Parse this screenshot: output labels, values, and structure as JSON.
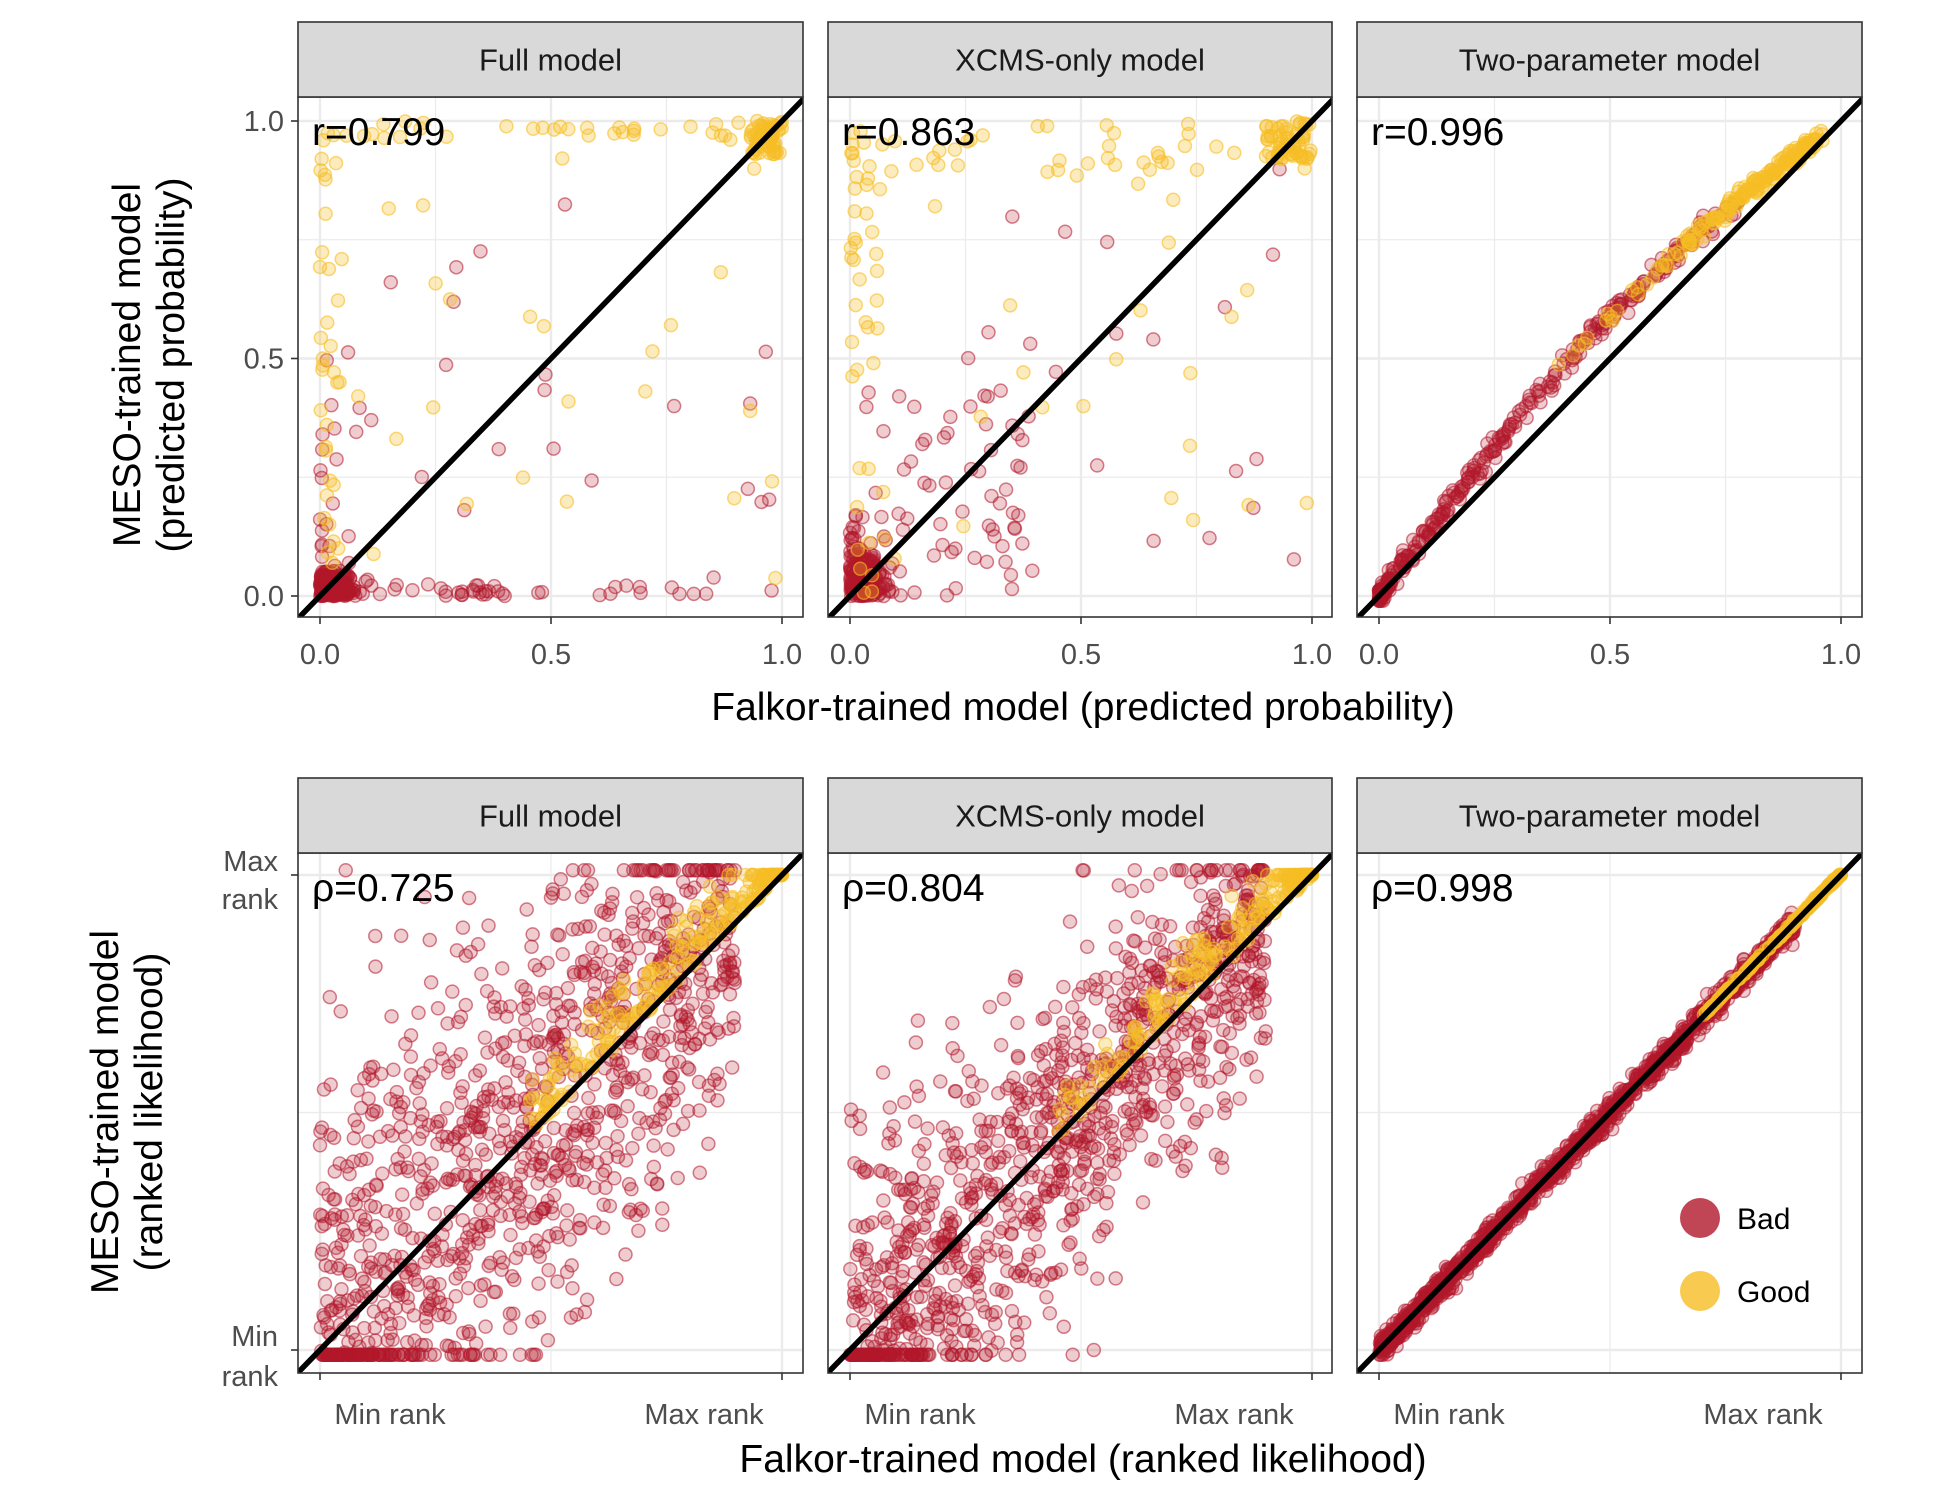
{
  "colors": {
    "bad": "#B2182B",
    "good": "#F6BE24",
    "identity_line": "#000000",
    "strip_fill": "#D9D9D9",
    "grid": "#EBEBEB"
  },
  "legend": {
    "items": [
      {
        "label": "Bad",
        "color": "#B2182B"
      },
      {
        "label": "Good",
        "color": "#F6BE24"
      }
    ],
    "placement": "bottom-right of lower-right panel"
  },
  "top_row": {
    "xlabel": "Falkor-trained model (predicted probability)",
    "ylabel_line1": "MESO-trained model",
    "ylabel_line2": "(predicted probability)",
    "x_ticks": [
      "0.0",
      "0.5",
      "1.0"
    ],
    "y_ticks": [
      "0.0",
      "0.5",
      "1.0"
    ]
  },
  "bottom_row": {
    "xlabel": "Falkor-trained model (ranked likelihood)",
    "ylabel_line1": "MESO-trained model",
    "ylabel_line2": "(ranked likelihood)",
    "x_ticks": [
      "Min rank",
      "Max rank"
    ],
    "y_ticks_min": [
      "Min",
      "rank"
    ],
    "y_ticks_max": [
      "Max",
      "rank"
    ]
  },
  "chart_data": [
    {
      "type": "scatter",
      "panel": "Full model",
      "measure": "predicted probability",
      "annotation": "r=0.799",
      "correlation": 0.799,
      "xlim": [
        0,
        1
      ],
      "ylim": [
        0,
        1
      ],
      "reference_line": "y = x",
      "series": [
        {
          "name": "Bad",
          "pattern": "mostly near (0,0); spread along y≈0 to x≈0.8 and along x≈0 to y≈0.5"
        },
        {
          "name": "Good",
          "pattern": "clustered near (1,1); scattered along y≈1 and x≈0"
        }
      ]
    },
    {
      "type": "scatter",
      "panel": "XCMS-only model",
      "measure": "predicted probability",
      "annotation": "r=0.863",
      "correlation": 0.863,
      "xlim": [
        0,
        1
      ],
      "ylim": [
        0,
        1
      ],
      "reference_line": "y = x",
      "series": [
        {
          "name": "Bad",
          "pattern": "dense near (0,0); scattered up to y≈0.85"
        },
        {
          "name": "Good",
          "pattern": "clustered near (1,1); scattered along top edge"
        }
      ]
    },
    {
      "type": "scatter",
      "panel": "Two-parameter model",
      "measure": "predicted probability",
      "annotation": "r=0.996",
      "correlation": 0.996,
      "xlim": [
        0,
        1
      ],
      "ylim": [
        0,
        1
      ],
      "reference_line": "y = x",
      "series": [
        {
          "name": "Bad",
          "pattern": "tight concave curve slightly above diagonal, x 0–0.75"
        },
        {
          "name": "Good",
          "pattern": "along same curve, concentrated near (0.95,0.98)"
        }
      ]
    },
    {
      "type": "scatter",
      "panel": "Full model",
      "measure": "ranked likelihood",
      "annotation": "ρ=0.725",
      "correlation": 0.725,
      "xlim": [
        "Min rank",
        "Max rank"
      ],
      "ylim": [
        "Min rank",
        "Max rank"
      ],
      "reference_line": "y = x",
      "series": [
        {
          "name": "Bad",
          "pattern": "broad cloud around diagonal"
        },
        {
          "name": "Good",
          "pattern": "upper-right corner near max rank"
        }
      ]
    },
    {
      "type": "scatter",
      "panel": "XCMS-only model",
      "measure": "ranked likelihood",
      "annotation": "ρ=0.804",
      "correlation": 0.804,
      "xlim": [
        "Min rank",
        "Max rank"
      ],
      "ylim": [
        "Min rank",
        "Max rank"
      ],
      "reference_line": "y = x",
      "series": [
        {
          "name": "Bad",
          "pattern": "cloud around diagonal, tighter than full model"
        },
        {
          "name": "Good",
          "pattern": "upper-right corner near max rank"
        }
      ]
    },
    {
      "type": "scatter",
      "panel": "Two-parameter model",
      "measure": "ranked likelihood",
      "annotation": "ρ=0.998",
      "correlation": 0.998,
      "xlim": [
        "Min rank",
        "Max rank"
      ],
      "ylim": [
        "Min rank",
        "Max rank"
      ],
      "reference_line": "y = x",
      "series": [
        {
          "name": "Bad",
          "pattern": "tightly on diagonal"
        },
        {
          "name": "Good",
          "pattern": "on diagonal near max rank"
        }
      ]
    }
  ]
}
